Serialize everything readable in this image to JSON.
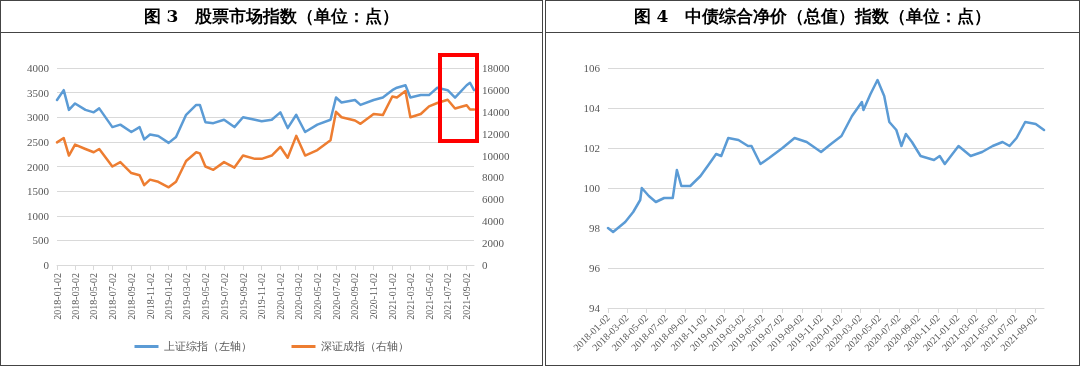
{
  "chart_data": [
    {
      "type": "line",
      "title": "图 3　股票市场指数（单位：点）",
      "legend": "bottom",
      "grid": "y",
      "xlim": [
        "2018-01-02",
        "2021-09-26"
      ],
      "xticks": [
        "2018-01-02",
        "2018-03-02",
        "2018-05-02",
        "2018-07-02",
        "2018-09-02",
        "2018-11-02",
        "2019-01-02",
        "2019-03-02",
        "2019-05-02",
        "2019-07-02",
        "2019-09-02",
        "2019-11-02",
        "2020-01-02",
        "2020-03-02",
        "2020-05-02",
        "2020-07-02",
        "2020-09-02",
        "2020-11-02",
        "2021-01-02",
        "2021-03-02",
        "2021-05-02",
        "2021-07-02",
        "2021-09-02"
      ],
      "ylim": [
        0,
        4000
      ],
      "yticks": [
        0,
        500,
        1000,
        1500,
        2000,
        2500,
        3000,
        3500,
        4000
      ],
      "y2lim": [
        0,
        18000
      ],
      "y2ticks": [
        0,
        2000,
        4000,
        6000,
        8000,
        10000,
        12000,
        14000,
        16000,
        18000
      ],
      "x": [
        "2018-01-02",
        "2018-01-24",
        "2018-02-10",
        "2018-03-02",
        "2018-04-05",
        "2018-05-02",
        "2018-05-20",
        "2018-07-02",
        "2018-07-28",
        "2018-09-02",
        "2018-09-29",
        "2018-10-14",
        "2018-11-02",
        "2018-11-29",
        "2019-01-02",
        "2019-01-26",
        "2019-02-28",
        "2019-04-02",
        "2019-04-14",
        "2019-05-02",
        "2019-05-28",
        "2019-07-02",
        "2019-08-05",
        "2019-09-02",
        "2019-10-11",
        "2019-11-02",
        "2019-12-05",
        "2020-01-02",
        "2020-01-26",
        "2020-02-23",
        "2020-03-02",
        "2020-03-23",
        "2020-05-02",
        "2020-06-14",
        "2020-07-02",
        "2020-07-20",
        "2020-09-02",
        "2020-09-20",
        "2020-11-02",
        "2020-12-02",
        "2021-01-02",
        "2021-01-17",
        "2021-02-14",
        "2021-03-02",
        "2021-04-05",
        "2021-05-02",
        "2021-05-29",
        "2021-07-02",
        "2021-07-26",
        "2021-09-02",
        "2021-09-13",
        "2021-09-26"
      ],
      "series": [
        {
          "name": "上证综指（左轴）",
          "color": "#5b9bd5",
          "values": [
            3350,
            3550,
            3150,
            3280,
            3150,
            3100,
            3180,
            2800,
            2850,
            2700,
            2800,
            2550,
            2650,
            2620,
            2480,
            2600,
            3050,
            3250,
            3250,
            2900,
            2880,
            2950,
            2800,
            3000,
            2950,
            2920,
            2950,
            3100,
            2780,
            3050,
            2950,
            2700,
            2850,
            2950,
            3400,
            3300,
            3350,
            3250,
            3350,
            3400,
            3550,
            3600,
            3650,
            3400,
            3450,
            3450,
            3600,
            3550,
            3400,
            3650,
            3700,
            3550
          ]
        },
        {
          "name": "深证成指（右轴）",
          "color": "#ed7d31",
          "axis": "y2",
          "values": [
            11200,
            11600,
            10000,
            11000,
            10600,
            10300,
            10600,
            9000,
            9400,
            8400,
            8200,
            7300,
            7800,
            7600,
            7100,
            7600,
            9500,
            10300,
            10200,
            9000,
            8700,
            9400,
            8900,
            10000,
            9700,
            9700,
            10000,
            10800,
            9800,
            11800,
            11300,
            10000,
            10500,
            11400,
            14000,
            13500,
            13200,
            12900,
            13800,
            13700,
            15400,
            15300,
            15900,
            13500,
            13800,
            14500,
            14800,
            15100,
            14300,
            14600,
            14200,
            14200
          ]
        }
      ]
    },
    {
      "type": "line",
      "title": "图 4　中债综合净价（总值）指数（单位：点）",
      "grid": "y",
      "xlim": [
        "2018-01-02",
        "2021-09-30"
      ],
      "xticks": [
        "2018-01-02",
        "2018-03-02",
        "2018-05-02",
        "2018-07-02",
        "2018-09-02",
        "2018-11-02",
        "2019-01-02",
        "2019-03-02",
        "2019-05-02",
        "2019-07-02",
        "2019-09-02",
        "2019-11-02",
        "2020-01-02",
        "2020-03-02",
        "2020-05-02",
        "2020-07-02",
        "2020-09-02",
        "2020-11-02",
        "2021-01-02",
        "2021-03-02",
        "2021-05-02",
        "2021-07-02",
        "2021-09-02"
      ],
      "ylim": [
        94,
        106
      ],
      "yticks": [
        94,
        96,
        98,
        100,
        102,
        104,
        106
      ],
      "x": [
        "2018-01-02",
        "2018-01-18",
        "2018-02-25",
        "2018-03-22",
        "2018-04-13",
        "2018-04-18",
        "2018-05-10",
        "2018-06-01",
        "2018-06-27",
        "2018-07-24",
        "2018-08-06",
        "2018-08-20",
        "2018-09-17",
        "2018-10-19",
        "2018-11-15",
        "2018-12-07",
        "2018-12-23",
        "2019-01-14",
        "2019-02-15",
        "2019-03-17",
        "2019-03-28",
        "2019-04-25",
        "2019-05-22",
        "2019-07-03",
        "2019-08-10",
        "2019-09-17",
        "2019-11-01",
        "2019-12-02",
        "2020-01-04",
        "2020-02-06",
        "2020-03-08",
        "2020-03-13",
        "2020-04-04",
        "2020-04-26",
        "2020-05-17",
        "2020-06-02",
        "2020-06-24",
        "2020-07-10",
        "2020-07-24",
        "2020-08-12",
        "2020-09-08",
        "2020-10-20",
        "2020-11-07",
        "2020-11-23",
        "2021-01-05",
        "2021-02-12",
        "2021-03-20",
        "2021-04-22",
        "2021-05-23",
        "2021-06-14",
        "2021-07-06",
        "2021-08-02",
        "2021-09-04",
        "2021-09-30"
      ],
      "series": [
        {
          "color": "#5b9bd5",
          "values": [
            98.0,
            97.8,
            98.3,
            98.8,
            99.4,
            100.0,
            99.6,
            99.3,
            99.5,
            99.5,
            100.9,
            100.1,
            100.1,
            100.6,
            101.2,
            101.7,
            101.6,
            102.5,
            102.4,
            102.1,
            102.1,
            101.2,
            101.5,
            102.0,
            102.5,
            102.3,
            101.8,
            102.2,
            102.6,
            103.6,
            104.3,
            103.9,
            104.7,
            105.4,
            104.6,
            103.3,
            102.9,
            102.1,
            102.7,
            102.3,
            101.6,
            101.4,
            101.6,
            101.2,
            102.1,
            101.6,
            101.8,
            102.1,
            102.3,
            102.1,
            102.5,
            103.3,
            103.2,
            102.9
          ]
        }
      ]
    }
  ]
}
